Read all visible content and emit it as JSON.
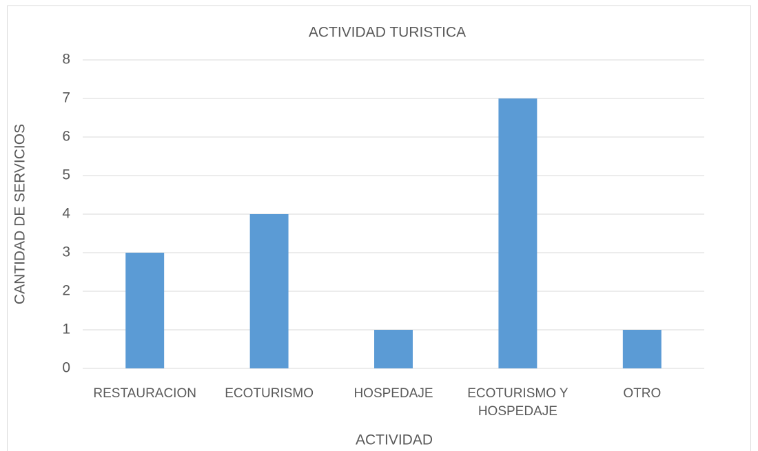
{
  "chart_data": {
    "type": "bar",
    "title": "ACTIVIDAD TURISTICA",
    "x_label": "ACTIVIDAD",
    "y_label": "CANTIDAD DE SERVICIOS",
    "categories": [
      "RESTAURACION",
      "ECOTURISMO",
      "HOSPEDAJE",
      "ECOTURISMO Y HOSPEDAJE",
      "OTRO"
    ],
    "values": [
      3,
      4,
      1,
      7,
      1
    ],
    "color": "#5b9bd5",
    "ylim": [
      0,
      8
    ],
    "yticks": [
      0,
      1,
      2,
      3,
      4,
      5,
      6,
      7,
      8
    ],
    "grid": true
  }
}
